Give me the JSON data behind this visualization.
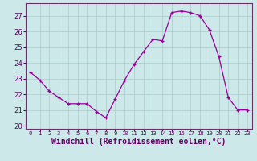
{
  "x": [
    0,
    1,
    2,
    3,
    4,
    5,
    6,
    7,
    8,
    9,
    10,
    11,
    12,
    13,
    14,
    15,
    16,
    17,
    18,
    19,
    20,
    21,
    22,
    23
  ],
  "y": [
    23.4,
    22.9,
    22.2,
    21.8,
    21.4,
    21.4,
    21.4,
    20.9,
    20.5,
    21.7,
    22.9,
    23.9,
    24.7,
    25.5,
    25.4,
    27.2,
    27.3,
    27.2,
    27.0,
    26.1,
    24.4,
    21.8,
    21.0,
    21.0
  ],
  "xlabel": "Windchill (Refroidissement éolien,°C)",
  "xlim": [
    -0.5,
    23.5
  ],
  "ylim": [
    19.8,
    27.8
  ],
  "yticks": [
    20,
    21,
    22,
    23,
    24,
    25,
    26,
    27
  ],
  "xticks": [
    0,
    1,
    2,
    3,
    4,
    5,
    6,
    7,
    8,
    9,
    10,
    11,
    12,
    13,
    14,
    15,
    16,
    17,
    18,
    19,
    20,
    21,
    22,
    23
  ],
  "line_color": "#990099",
  "marker": "+",
  "bg_color": "#cce8e8",
  "grid_color": "#aacccc",
  "spine_color": "#663366",
  "tick_color": "#660066",
  "xlabel_color": "#660066",
  "xlabel_fontsize": 7.0,
  "ytick_fontsize": 6.5,
  "xtick_fontsize": 5.2
}
